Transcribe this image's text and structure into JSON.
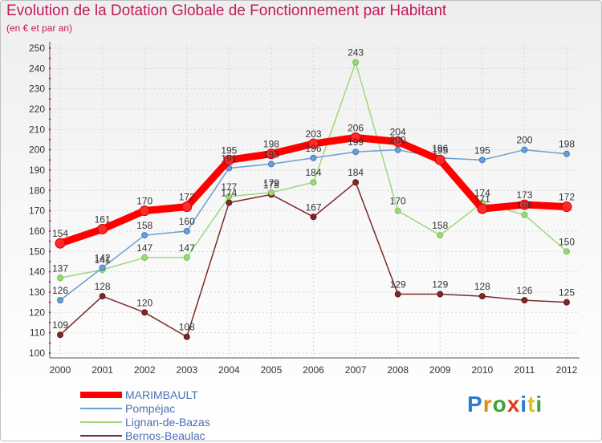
{
  "title": "Evolution de la Dotation Globale de Fonctionnement par Habitant",
  "subtitle": "(en € et par an)",
  "chart_data": {
    "type": "line",
    "title": "Evolution de la Dotation Globale de Fonctionnement par Habitant",
    "subtitle": "(en € et par an)",
    "xlabel": "",
    "ylabel": "",
    "x": [
      "2000",
      "2001",
      "2002",
      "2003",
      "2004",
      "2005",
      "2006",
      "2007",
      "2008",
      "2009",
      "2010",
      "2011",
      "2012"
    ],
    "ylim": [
      100,
      250
    ],
    "yticks": [
      100,
      110,
      120,
      130,
      140,
      150,
      160,
      170,
      180,
      190,
      200,
      210,
      220,
      230,
      240,
      250
    ],
    "grid": true,
    "legend": "bottom-left",
    "series": [
      {
        "name": "MARIMBAULT",
        "color": "#ff0000",
        "marker_color": "#cc0000",
        "emphasis": true,
        "values": [
          154,
          161,
          170,
          172,
          195,
          198,
          203,
          206,
          204,
          195,
          171,
          173,
          172
        ]
      },
      {
        "name": "Pompéjac",
        "color": "#6a9fd4",
        "marker_color": "#3b78c2",
        "values": [
          126,
          142,
          158,
          160,
          191,
          193,
          196,
          199,
          200,
          196,
          195,
          200,
          198
        ]
      },
      {
        "name": "Lignan-de-Bazas",
        "color": "#9bd97a",
        "marker_color": "#6cc24a",
        "values": [
          137,
          141,
          147,
          147,
          177,
          179,
          184,
          243,
          170,
          158,
          174,
          168,
          150
        ]
      },
      {
        "name": "Bernos-Beaulac",
        "color": "#7a2a2a",
        "marker_color": "#6a1515",
        "values": [
          109,
          128,
          120,
          108,
          174,
          178,
          167,
          184,
          129,
          129,
          128,
          126,
          125
        ]
      }
    ]
  },
  "legend": {
    "items": [
      "MARIMBAULT",
      "Pompéjac",
      "Lignan-de-Bazas",
      "Bernos-Beaulac"
    ]
  },
  "logo": {
    "letters": [
      "P",
      "r",
      "o",
      "x",
      "i",
      "t",
      "i"
    ],
    "colors": [
      "#2b7bd1",
      "#e0861a",
      "#3aa635",
      "#e03a1a",
      "#2b7bd1",
      "#e0c21a",
      "#3aa635"
    ]
  }
}
